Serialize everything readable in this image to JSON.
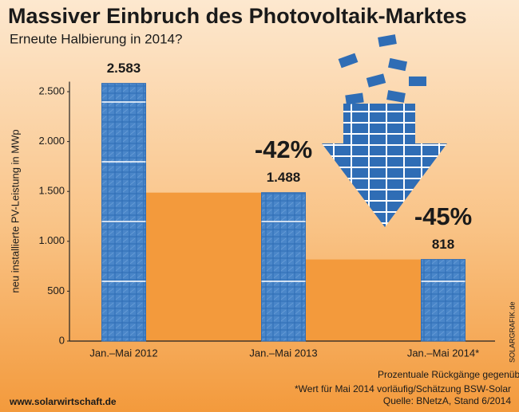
{
  "chart_data": {
    "type": "bar",
    "title": "Massiver Einbruch des Photovoltaik-Marktes",
    "subtitle": "Erneute Halbierung in 2014?",
    "y_label": "neu installierte PV-Leistung in MWp",
    "categories": [
      "Jan.–Mai 2012",
      "Jan.–Mai 2013",
      "Jan.–Mai 2014*"
    ],
    "values": [
      2583,
      1488,
      818
    ],
    "value_labels": [
      "2.583",
      "1.488",
      "818"
    ],
    "color": "#2f6db5",
    "step_color": "#f39a3c",
    "ylim": [
      0,
      2600
    ],
    "yticks": [
      0,
      500,
      {
        "value": 1000,
        "label": "1.000"
      },
      {
        "value": 1500,
        "label": "1.500"
      },
      {
        "value": 2000,
        "label": "2.000"
      },
      {
        "value": 2500,
        "label": "2.500"
      }
    ],
    "annotations": [
      "-42%",
      "-45%"
    ],
    "notes": [
      "Prozentuale Rückgänge gegenüber Vorjahreszeitraum",
      "*Wert für Mai 2014 vorläufig/Schätzung BSW-Solar",
      "Quelle: BNetzA, Stand 6/2014"
    ],
    "source_url": "www.solarwirtschaft.de",
    "credit": "SOLARGRAFIK.de"
  }
}
